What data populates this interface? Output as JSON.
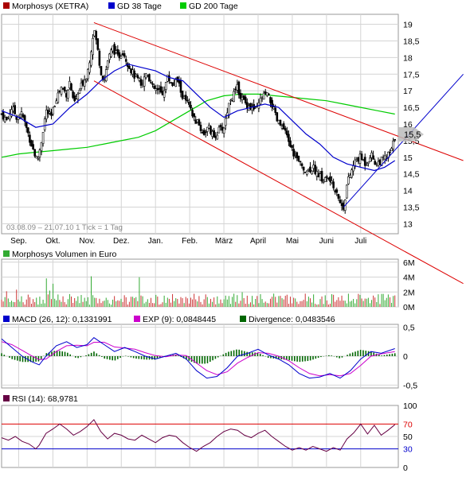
{
  "colors": {
    "grid": "#d4d4d4",
    "frame": "#9a9a9a",
    "up_candle": "#00aa00",
    "down_candle": "#aa0000",
    "wick": "#000000",
    "ma38": "#0000cc",
    "ma200": "#00cc00",
    "trend": "#dd0000",
    "volume_bar": "#cc3333",
    "volume_bar_alt": "#33aa33",
    "macd": "#0000cc",
    "signal": "#cc00cc",
    "divergence": "#006600",
    "rsi": "#660044",
    "rsi_upper": "#dd0000",
    "rsi_lower": "#0000cc"
  },
  "price_panel": {
    "legend": [
      {
        "label": "Morphosys (XETRA)",
        "color": "#aa0000",
        "icon": "red-square"
      },
      {
        "label": "GD 38 Tage",
        "color": "#0000cc",
        "icon": "blue-square"
      },
      {
        "label": "GD 200 Tage",
        "color": "#00cc00",
        "icon": "green-square"
      }
    ],
    "date_range": "03.08.09 – 21.07.10   1 Tick = 1 Tag",
    "last_price_tag": "15,5"
  },
  "volume_panel": {
    "legend": "Morphosys Volumen in Euro"
  },
  "macd_panel": {
    "legend": [
      {
        "label": "MACD (26, 12): 0,1331991",
        "color": "#0000cc",
        "icon": "blue-square"
      },
      {
        "label": "EXP (9): 0,0848445",
        "color": "#cc00cc",
        "icon": "magenta-square"
      },
      {
        "label": "Divergence: 0,0483546",
        "color": "#006600",
        "icon": "darkgreen-square"
      }
    ]
  },
  "rsi_panel": {
    "legend": [
      {
        "label": "RSI (14): 68,9781",
        "color": "#660044",
        "icon": "purple-square"
      }
    ],
    "levels": [
      70,
      30
    ]
  },
  "chart_data": [
    {
      "type": "line",
      "x_labels": [
        "Sep.",
        "Okt.",
        "Nov.",
        "Dez.",
        "Jan.",
        "Feb.",
        "März",
        "April",
        "Mai",
        "Juni",
        "Juli"
      ],
      "y_ticks": [
        {
          "value": 13,
          "label": "13"
        },
        {
          "value": 13.5,
          "label": "13,5"
        },
        {
          "value": 14,
          "label": "14"
        },
        {
          "value": 14.5,
          "label": "14,5"
        },
        {
          "value": 15,
          "label": "15"
        },
        {
          "value": 15.5,
          "label": "15,5"
        },
        {
          "value": 16,
          "label": "16"
        },
        {
          "value": 16.5,
          "label": "16,5"
        },
        {
          "value": 17,
          "label": "17"
        },
        {
          "value": 17.5,
          "label": "17,5"
        },
        {
          "value": 18,
          "label": "18"
        },
        {
          "value": 18.5,
          "label": "18,5"
        },
        {
          "value": 19,
          "label": "19"
        }
      ],
      "ylim": [
        12.7,
        19.3
      ],
      "xlim": [
        0,
        11.6
      ],
      "price": [
        [
          0.0,
          16.3
        ],
        [
          0.15,
          16.1
        ],
        [
          0.3,
          16.5
        ],
        [
          0.45,
          16.2
        ],
        [
          0.6,
          16.3
        ],
        [
          0.75,
          15.8
        ],
        [
          0.9,
          15.3
        ],
        [
          1.0,
          15.0
        ],
        [
          1.05,
          14.9
        ],
        [
          1.15,
          15.4
        ],
        [
          1.3,
          16.4
        ],
        [
          1.45,
          16.2
        ],
        [
          1.6,
          16.8
        ],
        [
          1.75,
          17.1
        ],
        [
          1.9,
          16.9
        ],
        [
          2.0,
          17.3
        ],
        [
          2.1,
          16.6
        ],
        [
          2.2,
          16.8
        ],
        [
          2.35,
          17.2
        ],
        [
          2.5,
          17.5
        ],
        [
          2.6,
          18.1
        ],
        [
          2.7,
          18.9
        ],
        [
          2.8,
          18.3
        ],
        [
          2.9,
          17.6
        ],
        [
          3.0,
          17.3
        ],
        [
          3.1,
          17.9
        ],
        [
          3.25,
          18.3
        ],
        [
          3.4,
          18.0
        ],
        [
          3.55,
          18.2
        ],
        [
          3.7,
          17.8
        ],
        [
          3.85,
          17.5
        ],
        [
          4.0,
          17.3
        ],
        [
          4.1,
          17.2
        ],
        [
          4.25,
          17.6
        ],
        [
          4.4,
          17.1
        ],
        [
          4.55,
          17.0
        ],
        [
          4.7,
          16.9
        ],
        [
          4.85,
          17.4
        ],
        [
          5.0,
          17.2
        ],
        [
          5.15,
          17.3
        ],
        [
          5.3,
          16.8
        ],
        [
          5.45,
          16.6
        ],
        [
          5.6,
          16.2
        ],
        [
          5.75,
          16.0
        ],
        [
          5.9,
          15.7
        ],
        [
          6.05,
          15.9
        ],
        [
          6.2,
          15.6
        ],
        [
          6.35,
          15.8
        ],
        [
          6.5,
          15.9
        ],
        [
          6.6,
          16.4
        ],
        [
          6.7,
          16.8
        ],
        [
          6.8,
          16.9
        ],
        [
          6.9,
          17.1
        ],
        [
          7.0,
          16.8
        ],
        [
          7.15,
          16.6
        ],
        [
          7.3,
          16.5
        ],
        [
          7.45,
          16.4
        ],
        [
          7.6,
          16.8
        ],
        [
          7.75,
          16.9
        ],
        [
          7.9,
          16.6
        ],
        [
          8.05,
          16.1
        ],
        [
          8.2,
          15.9
        ],
        [
          8.35,
          15.6
        ],
        [
          8.5,
          15.2
        ],
        [
          8.65,
          14.9
        ],
        [
          8.8,
          14.7
        ],
        [
          8.95,
          14.6
        ],
        [
          9.1,
          14.7
        ],
        [
          9.25,
          14.5
        ],
        [
          9.4,
          14.3
        ],
        [
          9.55,
          14.4
        ],
        [
          9.7,
          14.1
        ],
        [
          9.8,
          14.0
        ],
        [
          9.9,
          13.6
        ],
        [
          10.0,
          13.5
        ],
        [
          10.1,
          14.2
        ],
        [
          10.2,
          14.5
        ],
        [
          10.35,
          14.9
        ],
        [
          10.5,
          15.0
        ],
        [
          10.65,
          14.8
        ],
        [
          10.8,
          15.1
        ],
        [
          10.95,
          14.8
        ],
        [
          11.1,
          14.9
        ],
        [
          11.25,
          15.0
        ],
        [
          11.4,
          15.2
        ],
        [
          11.5,
          15.6
        ]
      ],
      "gd38": [
        [
          0.0,
          16.4
        ],
        [
          0.5,
          16.2
        ],
        [
          1.0,
          15.9
        ],
        [
          1.5,
          16.0
        ],
        [
          2.0,
          16.5
        ],
        [
          2.5,
          16.9
        ],
        [
          2.9,
          17.3
        ],
        [
          3.3,
          17.6
        ],
        [
          3.7,
          17.8
        ],
        [
          4.1,
          17.7
        ],
        [
          4.5,
          17.6
        ],
        [
          4.9,
          17.4
        ],
        [
          5.3,
          17.3
        ],
        [
          5.7,
          16.9
        ],
        [
          6.1,
          16.5
        ],
        [
          6.5,
          16.2
        ],
        [
          6.9,
          16.4
        ],
        [
          7.3,
          16.5
        ],
        [
          7.7,
          16.6
        ],
        [
          8.1,
          16.5
        ],
        [
          8.5,
          16.1
        ],
        [
          8.9,
          15.7
        ],
        [
          9.3,
          15.4
        ],
        [
          9.7,
          15.0
        ],
        [
          10.1,
          14.8
        ],
        [
          10.5,
          14.7
        ],
        [
          10.9,
          14.6
        ],
        [
          11.2,
          14.7
        ],
        [
          11.5,
          14.9
        ]
      ],
      "gd200": [
        [
          0.0,
          15.0
        ],
        [
          0.5,
          15.1
        ],
        [
          1.0,
          15.15
        ],
        [
          1.5,
          15.2
        ],
        [
          2.0,
          15.25
        ],
        [
          2.5,
          15.3
        ],
        [
          3.0,
          15.4
        ],
        [
          3.5,
          15.5
        ],
        [
          4.0,
          15.6
        ],
        [
          4.5,
          15.8
        ],
        [
          5.0,
          16.1
        ],
        [
          5.5,
          16.4
        ],
        [
          6.0,
          16.7
        ],
        [
          6.5,
          16.85
        ],
        [
          7.0,
          16.9
        ],
        [
          7.5,
          16.9
        ],
        [
          8.0,
          16.85
        ],
        [
          8.5,
          16.8
        ],
        [
          9.0,
          16.75
        ],
        [
          9.5,
          16.7
        ],
        [
          10.0,
          16.6
        ],
        [
          10.5,
          16.5
        ],
        [
          11.0,
          16.4
        ],
        [
          11.5,
          16.3
        ]
      ],
      "trend_lines": [
        {
          "from": [
            2.7,
            19.05
          ],
          "to": [
            13.5,
            14.9
          ]
        },
        {
          "from": [
            2.7,
            17.3
          ],
          "to": [
            13.5,
            11.2
          ]
        },
        {
          "from": [
            10.0,
            13.5
          ],
          "to": [
            13.5,
            17.5
          ]
        }
      ]
    },
    {
      "type": "bar",
      "y_ticks": [
        {
          "value": 0,
          "label": "0M"
        },
        {
          "value": 2,
          "label": "2M"
        },
        {
          "value": 4,
          "label": "4M"
        },
        {
          "value": 6,
          "label": "6M"
        }
      ],
      "ylim": [
        0,
        6.4
      ]
    },
    {
      "type": "line",
      "y_ticks": [
        {
          "value": 0.5,
          "label": "0,5"
        },
        {
          "value": 0,
          "label": "0"
        },
        {
          "value": -0.5,
          "label": "-0,5"
        }
      ],
      "ylim": [
        -0.55,
        0.55
      ],
      "macd": [
        [
          0.0,
          0.3
        ],
        [
          0.3,
          0.15
        ],
        [
          0.6,
          0.0
        ],
        [
          0.9,
          -0.1
        ],
        [
          1.1,
          -0.15
        ],
        [
          1.3,
          0.0
        ],
        [
          1.6,
          0.18
        ],
        [
          1.9,
          0.25
        ],
        [
          2.2,
          0.15
        ],
        [
          2.5,
          0.2
        ],
        [
          2.7,
          0.32
        ],
        [
          3.0,
          0.2
        ],
        [
          3.3,
          0.08
        ],
        [
          3.6,
          0.15
        ],
        [
          3.9,
          0.08
        ],
        [
          4.2,
          0.0
        ],
        [
          4.5,
          -0.05
        ],
        [
          4.8,
          0.0
        ],
        [
          5.1,
          0.05
        ],
        [
          5.4,
          -0.05
        ],
        [
          5.7,
          -0.25
        ],
        [
          6.0,
          -0.38
        ],
        [
          6.3,
          -0.35
        ],
        [
          6.6,
          -0.2
        ],
        [
          6.9,
          0.0
        ],
        [
          7.2,
          0.05
        ],
        [
          7.5,
          0.12
        ],
        [
          7.8,
          0.02
        ],
        [
          8.1,
          -0.05
        ],
        [
          8.4,
          -0.15
        ],
        [
          8.7,
          -0.3
        ],
        [
          9.0,
          -0.38
        ],
        [
          9.3,
          -0.36
        ],
        [
          9.6,
          -0.3
        ],
        [
          9.9,
          -0.38
        ],
        [
          10.2,
          -0.25
        ],
        [
          10.5,
          -0.05
        ],
        [
          10.8,
          0.08
        ],
        [
          11.1,
          0.05
        ],
        [
          11.5,
          0.13
        ]
      ],
      "signal": [
        [
          0.0,
          0.25
        ],
        [
          0.3,
          0.2
        ],
        [
          0.6,
          0.1
        ],
        [
          0.9,
          0.0
        ],
        [
          1.1,
          -0.06
        ],
        [
          1.3,
          -0.05
        ],
        [
          1.6,
          0.08
        ],
        [
          1.9,
          0.18
        ],
        [
          2.2,
          0.19
        ],
        [
          2.5,
          0.18
        ],
        [
          2.7,
          0.24
        ],
        [
          3.0,
          0.24
        ],
        [
          3.3,
          0.16
        ],
        [
          3.6,
          0.14
        ],
        [
          3.9,
          0.12
        ],
        [
          4.2,
          0.06
        ],
        [
          4.5,
          0.01
        ],
        [
          4.8,
          -0.01
        ],
        [
          5.1,
          0.02
        ],
        [
          5.4,
          0.01
        ],
        [
          5.7,
          -0.12
        ],
        [
          6.0,
          -0.25
        ],
        [
          6.3,
          -0.32
        ],
        [
          6.6,
          -0.27
        ],
        [
          6.9,
          -0.12
        ],
        [
          7.2,
          -0.02
        ],
        [
          7.5,
          0.06
        ],
        [
          7.8,
          0.05
        ],
        [
          8.1,
          0.0
        ],
        [
          8.4,
          -0.08
        ],
        [
          8.7,
          -0.2
        ],
        [
          9.0,
          -0.3
        ],
        [
          9.3,
          -0.34
        ],
        [
          9.6,
          -0.32
        ],
        [
          9.9,
          -0.34
        ],
        [
          10.2,
          -0.3
        ],
        [
          10.5,
          -0.16
        ],
        [
          10.8,
          0.0
        ],
        [
          11.1,
          0.04
        ],
        [
          11.5,
          0.08
        ]
      ]
    },
    {
      "type": "line",
      "y_ticks": [
        {
          "value": 100,
          "label": "100"
        },
        {
          "value": 70,
          "label": "70"
        },
        {
          "value": 50,
          "label": "50"
        },
        {
          "value": 30,
          "label": "30"
        },
        {
          "value": 0,
          "label": "0"
        }
      ],
      "ylim": [
        0,
        100
      ],
      "rsi": [
        [
          0.0,
          48
        ],
        [
          0.2,
          44
        ],
        [
          0.4,
          50
        ],
        [
          0.6,
          42
        ],
        [
          0.8,
          38
        ],
        [
          1.0,
          30
        ],
        [
          1.1,
          36
        ],
        [
          1.3,
          55
        ],
        [
          1.5,
          62
        ],
        [
          1.7,
          70
        ],
        [
          1.9,
          62
        ],
        [
          2.1,
          52
        ],
        [
          2.3,
          58
        ],
        [
          2.5,
          66
        ],
        [
          2.7,
          77
        ],
        [
          2.9,
          58
        ],
        [
          3.1,
          46
        ],
        [
          3.3,
          55
        ],
        [
          3.5,
          52
        ],
        [
          3.7,
          46
        ],
        [
          3.9,
          44
        ],
        [
          4.1,
          52
        ],
        [
          4.3,
          46
        ],
        [
          4.5,
          40
        ],
        [
          4.7,
          48
        ],
        [
          4.9,
          52
        ],
        [
          5.1,
          50
        ],
        [
          5.3,
          40
        ],
        [
          5.5,
          32
        ],
        [
          5.7,
          26
        ],
        [
          5.9,
          34
        ],
        [
          6.1,
          40
        ],
        [
          6.3,
          50
        ],
        [
          6.5,
          58
        ],
        [
          6.7,
          62
        ],
        [
          6.9,
          60
        ],
        [
          7.1,
          52
        ],
        [
          7.3,
          48
        ],
        [
          7.5,
          55
        ],
        [
          7.7,
          60
        ],
        [
          7.9,
          50
        ],
        [
          8.1,
          42
        ],
        [
          8.3,
          34
        ],
        [
          8.5,
          28
        ],
        [
          8.7,
          32
        ],
        [
          8.9,
          28
        ],
        [
          9.1,
          34
        ],
        [
          9.3,
          30
        ],
        [
          9.5,
          26
        ],
        [
          9.7,
          32
        ],
        [
          9.9,
          28
        ],
        [
          10.1,
          46
        ],
        [
          10.3,
          56
        ],
        [
          10.5,
          70
        ],
        [
          10.7,
          54
        ],
        [
          10.9,
          68
        ],
        [
          11.1,
          52
        ],
        [
          11.3,
          60
        ],
        [
          11.5,
          69
        ]
      ]
    }
  ]
}
